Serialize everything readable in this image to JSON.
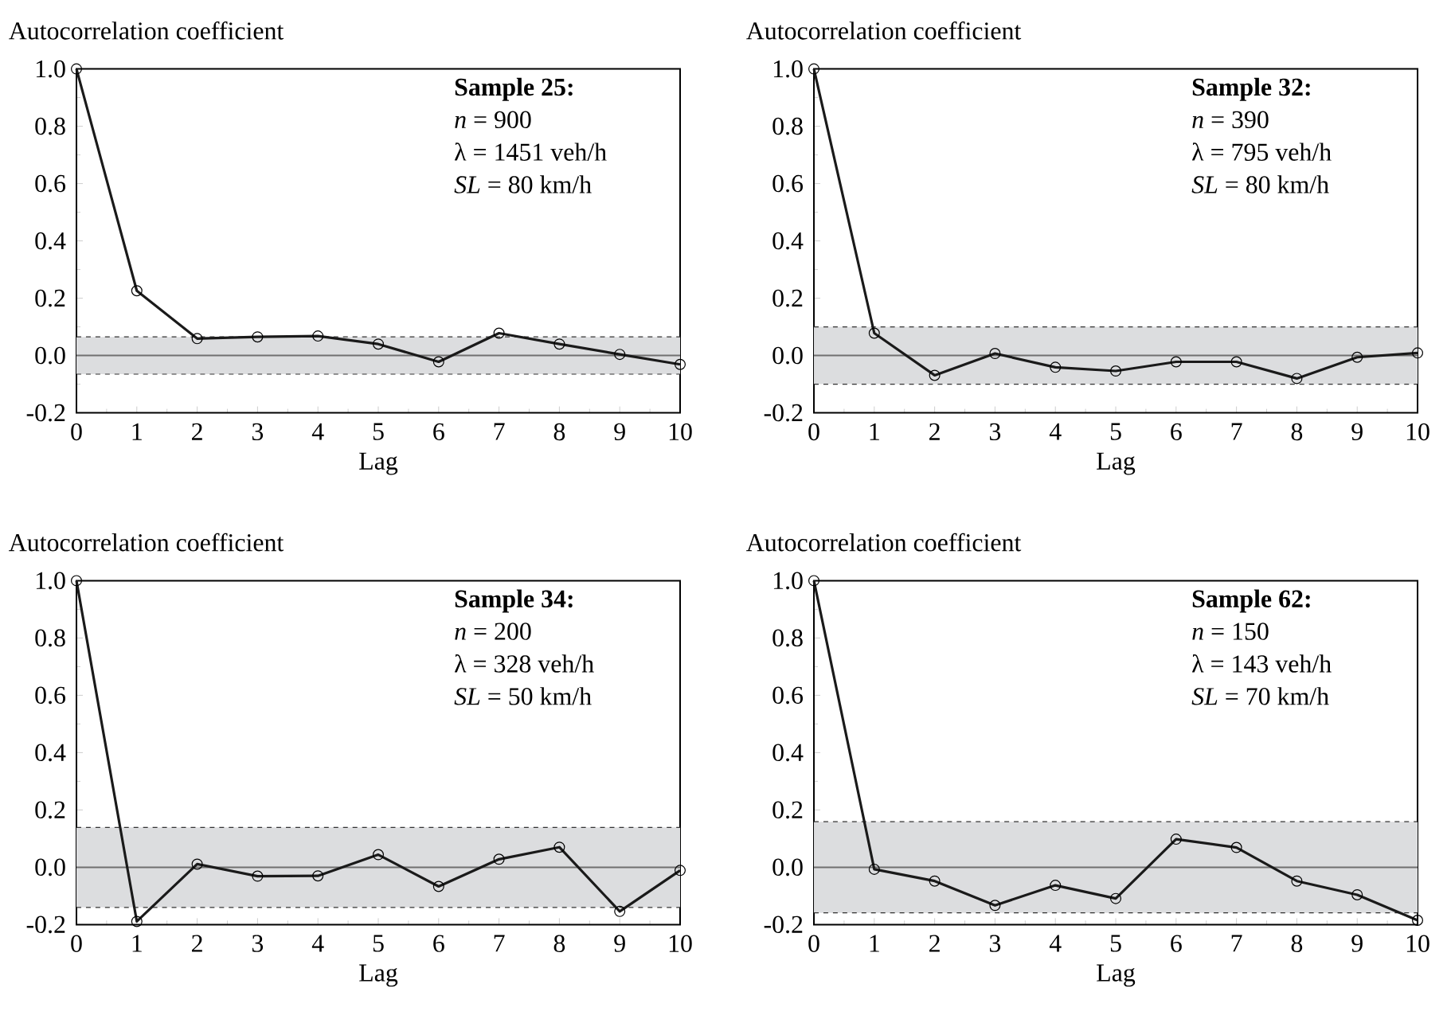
{
  "chart_data": [
    {
      "type": "line",
      "xlabel": "Lag",
      "ylabel": "Autocorrelation coefficient",
      "annotations": [
        "**Sample 25:**",
        "*n* = 900",
        "λ = 1451 veh/h",
        "*SL* = 80 km/h"
      ],
      "xlim": [
        0,
        10
      ],
      "ylim": [
        -0.2,
        1.0
      ],
      "xticks": [
        0,
        1,
        2,
        3,
        4,
        5,
        6,
        7,
        8,
        9,
        10
      ],
      "yticks": [
        {
          "value": -0.2,
          "label": "-0.2"
        },
        {
          "value": 0,
          "label": "0.0"
        },
        {
          "value": 0.2,
          "label": "0.2"
        },
        {
          "value": 0.4,
          "label": "0.4"
        },
        {
          "value": 0.6,
          "label": "0.6"
        },
        {
          "value": 0.8,
          "label": "0.8"
        },
        {
          "value": 1.0,
          "label": "1.0"
        }
      ],
      "marker": "circle",
      "line_style": "solid",
      "bands": [
        {
          "axis": "y",
          "from": -0.065,
          "to": 0.065,
          "color": "#dcdddf"
        }
      ],
      "ref_lines": [
        {
          "axis": "y",
          "value": 0,
          "color": "#707070"
        },
        {
          "axis": "y",
          "value": 0.065,
          "color": "#333333",
          "line_style": "dashed"
        },
        {
          "axis": "y",
          "value": -0.065,
          "color": "#333333",
          "line_style": "dashed"
        }
      ],
      "series": [
        {
          "color": "#1a1a1a",
          "x": [
            0,
            1,
            2,
            3,
            4,
            5,
            6,
            7,
            8,
            9,
            10
          ],
          "values": [
            1.0,
            0.226,
            0.059,
            0.065,
            0.068,
            0.04,
            -0.022,
            0.078,
            0.04,
            0.004,
            -0.031
          ]
        }
      ]
    },
    {
      "type": "line",
      "xlabel": "Lag",
      "ylabel": "Autocorrelation coefficient",
      "annotations": [
        "**Sample 32:**",
        "*n* = 390",
        "λ = 795 veh/h",
        "*SL* = 80 km/h"
      ],
      "xlim": [
        0,
        10
      ],
      "ylim": [
        -0.2,
        1.0
      ],
      "xticks": [
        0,
        1,
        2,
        3,
        4,
        5,
        6,
        7,
        8,
        9,
        10
      ],
      "yticks": [
        {
          "value": -0.2,
          "label": "-0.2"
        },
        {
          "value": 0,
          "label": "0.0"
        },
        {
          "value": 0.2,
          "label": "0.2"
        },
        {
          "value": 0.4,
          "label": "0.4"
        },
        {
          "value": 0.6,
          "label": "0.6"
        },
        {
          "value": 0.8,
          "label": "0.8"
        },
        {
          "value": 1.0,
          "label": "1.0"
        }
      ],
      "marker": "circle",
      "line_style": "solid",
      "bands": [
        {
          "axis": "y",
          "from": -0.1,
          "to": 0.1,
          "color": "#dcdddf"
        }
      ],
      "ref_lines": [
        {
          "axis": "y",
          "value": 0,
          "color": "#707070"
        },
        {
          "axis": "y",
          "value": 0.1,
          "color": "#333333",
          "line_style": "dashed"
        },
        {
          "axis": "y",
          "value": -0.1,
          "color": "#333333",
          "line_style": "dashed"
        }
      ],
      "series": [
        {
          "color": "#1a1a1a",
          "x": [
            0,
            1,
            2,
            3,
            4,
            5,
            6,
            7,
            8,
            9,
            10
          ],
          "values": [
            1.0,
            0.078,
            -0.069,
            0.007,
            -0.041,
            -0.054,
            -0.022,
            -0.022,
            -0.08,
            -0.006,
            0.009
          ]
        }
      ]
    },
    {
      "type": "line",
      "xlabel": "Lag",
      "ylabel": "Autocorrelation coefficient",
      "annotations": [
        "**Sample 34:**",
        "*n* = 200",
        "λ = 328 veh/h",
        "*SL* = 50 km/h"
      ],
      "xlim": [
        0,
        10
      ],
      "ylim": [
        -0.2,
        1.0
      ],
      "xticks": [
        0,
        1,
        2,
        3,
        4,
        5,
        6,
        7,
        8,
        9,
        10
      ],
      "yticks": [
        {
          "value": -0.2,
          "label": "-0.2"
        },
        {
          "value": 0,
          "label": "0.0"
        },
        {
          "value": 0.2,
          "label": "0.2"
        },
        {
          "value": 0.4,
          "label": "0.4"
        },
        {
          "value": 0.6,
          "label": "0.6"
        },
        {
          "value": 0.8,
          "label": "0.8"
        },
        {
          "value": 1.0,
          "label": "1.0"
        }
      ],
      "marker": "circle",
      "line_style": "solid",
      "bands": [
        {
          "axis": "y",
          "from": -0.14,
          "to": 0.139,
          "color": "#dcdddf"
        }
      ],
      "ref_lines": [
        {
          "axis": "y",
          "value": 0,
          "color": "#707070"
        },
        {
          "axis": "y",
          "value": 0.139,
          "color": "#333333",
          "line_style": "dashed"
        },
        {
          "axis": "y",
          "value": -0.14,
          "color": "#333333",
          "line_style": "dashed"
        }
      ],
      "series": [
        {
          "color": "#1a1a1a",
          "x": [
            0,
            1,
            2,
            3,
            4,
            5,
            6,
            7,
            8,
            9,
            10
          ],
          "values": [
            1.0,
            -0.189,
            0.011,
            -0.031,
            -0.03,
            0.044,
            -0.067,
            0.028,
            0.07,
            -0.154,
            -0.011
          ]
        }
      ]
    },
    {
      "type": "line",
      "xlabel": "Lag",
      "ylabel": "Autocorrelation coefficient",
      "annotations": [
        "**Sample 62:**",
        "*n* = 150",
        "λ = 143 veh/h",
        "*SL* = 70 km/h"
      ],
      "xlim": [
        0,
        10
      ],
      "ylim": [
        -0.2,
        1.0
      ],
      "xticks": [
        0,
        1,
        2,
        3,
        4,
        5,
        6,
        7,
        8,
        9,
        10
      ],
      "yticks": [
        {
          "value": -0.2,
          "label": "-0.2"
        },
        {
          "value": 0,
          "label": "0.0"
        },
        {
          "value": 0.2,
          "label": "0.2"
        },
        {
          "value": 0.4,
          "label": "0.4"
        },
        {
          "value": 0.6,
          "label": "0.6"
        },
        {
          "value": 0.8,
          "label": "0.8"
        },
        {
          "value": 1.0,
          "label": "1.0"
        }
      ],
      "marker": "circle",
      "line_style": "solid",
      "bands": [
        {
          "axis": "y",
          "from": -0.159,
          "to": 0.159,
          "color": "#dcdddf"
        }
      ],
      "ref_lines": [
        {
          "axis": "y",
          "value": 0,
          "color": "#707070"
        },
        {
          "axis": "y",
          "value": 0.159,
          "color": "#333333",
          "line_style": "dashed"
        },
        {
          "axis": "y",
          "value": -0.159,
          "color": "#333333",
          "line_style": "dashed"
        }
      ],
      "series": [
        {
          "color": "#1a1a1a",
          "x": [
            0,
            1,
            2,
            3,
            4,
            5,
            6,
            7,
            8,
            9,
            10
          ],
          "values": [
            1.0,
            -0.007,
            -0.048,
            -0.133,
            -0.063,
            -0.109,
            0.098,
            0.069,
            -0.048,
            -0.096,
            -0.185
          ]
        }
      ]
    }
  ]
}
